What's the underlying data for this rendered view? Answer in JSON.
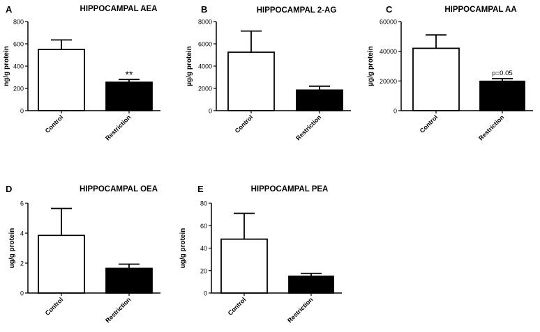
{
  "chart_data": [
    {
      "type": "bar",
      "panel_letter": "A",
      "title": "HIPPOCAMPAL AEA",
      "ylabel": "ng/g protein",
      "xlabel": "",
      "ylim": [
        0,
        800
      ],
      "yticks": [
        "0",
        "200",
        "400",
        "600",
        "800"
      ],
      "categories": [
        "Control",
        "Restriction"
      ],
      "values": [
        550,
        255
      ],
      "errors": [
        85,
        25
      ],
      "bar_fills": [
        "#ffffff",
        "#000000"
      ],
      "annotation": "**",
      "grid": false
    },
    {
      "type": "bar",
      "panel_letter": "B",
      "title": "HIPPOCAMPAL 2-AG",
      "ylabel": "µg/g protein",
      "xlabel": "",
      "ylim": [
        0,
        8000
      ],
      "yticks": [
        "0",
        "2000",
        "4000",
        "6000",
        "8000"
      ],
      "categories": [
        "Control",
        "Restriction"
      ],
      "values": [
        5250,
        1850
      ],
      "errors": [
        1900,
        350
      ],
      "bar_fills": [
        "#ffffff",
        "#000000"
      ],
      "annotation": "",
      "grid": false
    },
    {
      "type": "bar",
      "panel_letter": "C",
      "title": "HIPPOCAMPAL AA",
      "ylabel": "µg/g protein",
      "xlabel": "",
      "ylim": [
        0,
        60000
      ],
      "yticks": [
        "0",
        "20000",
        "40000",
        "60000"
      ],
      "categories": [
        "Control",
        "Restriction"
      ],
      "values": [
        42000,
        19800
      ],
      "errors": [
        9000,
        1800
      ],
      "bar_fills": [
        "#ffffff",
        "#000000"
      ],
      "annotation": "p=0.05",
      "grid": false
    },
    {
      "type": "bar",
      "panel_letter": "D",
      "title": "HIPPOCAMPAL OEA",
      "ylabel": "ug/g protein",
      "xlabel": "",
      "ylim": [
        0,
        6
      ],
      "yticks": [
        "0",
        "2",
        "4",
        "6"
      ],
      "categories": [
        "Control",
        "Restriction"
      ],
      "values": [
        3.85,
        1.65
      ],
      "errors": [
        1.8,
        0.28
      ],
      "bar_fills": [
        "#ffffff",
        "#000000"
      ],
      "annotation": "",
      "grid": false
    },
    {
      "type": "bar",
      "panel_letter": "E",
      "title": "HIPPOCAMPAL PEA",
      "ylabel": "ug/g protein",
      "xlabel": "",
      "ylim": [
        0,
        80
      ],
      "yticks": [
        "0",
        "20",
        "40",
        "60",
        "80"
      ],
      "categories": [
        "Control",
        "Restriction"
      ],
      "values": [
        48,
        15
      ],
      "errors": [
        23,
        2.5
      ],
      "bar_fills": [
        "#ffffff",
        "#000000"
      ],
      "annotation": "",
      "grid": false
    }
  ]
}
